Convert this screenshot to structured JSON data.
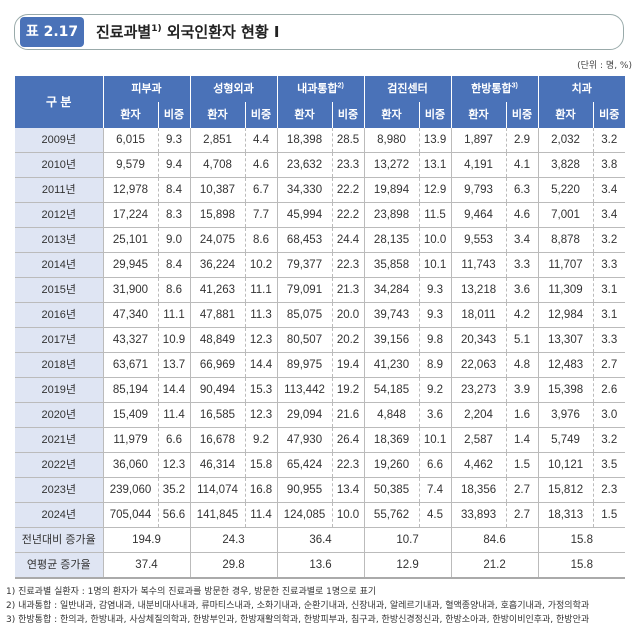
{
  "header": {
    "badge": "표 2.17",
    "title": "진료과별",
    "title_sup": "1)",
    "title_rest": " 외국인환자 현황 Ⅰ",
    "unit": "(단위 : 명, %)"
  },
  "table": {
    "row_header": "구 분",
    "groups": [
      {
        "name": "피부과",
        "sup": ""
      },
      {
        "name": "성형외과",
        "sup": ""
      },
      {
        "name": "내과통합",
        "sup": "2)"
      },
      {
        "name": "검진센터",
        "sup": ""
      },
      {
        "name": "한방통합",
        "sup": "3)"
      },
      {
        "name": "치과",
        "sup": ""
      }
    ],
    "sub_patient": "환자",
    "sub_ratio": "비중",
    "rows": [
      [
        "2009년",
        "6,015",
        "9.3",
        "2,851",
        "4.4",
        "18,398",
        "28.5",
        "8,980",
        "13.9",
        "1,897",
        "2.9",
        "2,032",
        "3.2"
      ],
      [
        "2010년",
        "9,579",
        "9.4",
        "4,708",
        "4.6",
        "23,632",
        "23.3",
        "13,272",
        "13.1",
        "4,191",
        "4.1",
        "3,828",
        "3.8"
      ],
      [
        "2011년",
        "12,978",
        "8.4",
        "10,387",
        "6.7",
        "34,330",
        "22.2",
        "19,894",
        "12.9",
        "9,793",
        "6.3",
        "5,220",
        "3.4"
      ],
      [
        "2012년",
        "17,224",
        "8.3",
        "15,898",
        "7.7",
        "45,994",
        "22.2",
        "23,898",
        "11.5",
        "9,464",
        "4.6",
        "7,001",
        "3.4"
      ],
      [
        "2013년",
        "25,101",
        "9.0",
        "24,075",
        "8.6",
        "68,453",
        "24.4",
        "28,135",
        "10.0",
        "9,553",
        "3.4",
        "8,878",
        "3.2"
      ],
      [
        "2014년",
        "29,945",
        "8.4",
        "36,224",
        "10.2",
        "79,377",
        "22.3",
        "35,858",
        "10.1",
        "11,743",
        "3.3",
        "11,707",
        "3.3"
      ],
      [
        "2015년",
        "31,900",
        "8.6",
        "41,263",
        "11.1",
        "79,091",
        "21.3",
        "34,284",
        "9.3",
        "13,218",
        "3.6",
        "11,309",
        "3.1"
      ],
      [
        "2016년",
        "47,340",
        "11.1",
        "47,881",
        "11.3",
        "85,075",
        "20.0",
        "39,743",
        "9.3",
        "18,011",
        "4.2",
        "12,984",
        "3.1"
      ],
      [
        "2017년",
        "43,327",
        "10.9",
        "48,849",
        "12.3",
        "80,507",
        "20.2",
        "39,156",
        "9.8",
        "20,343",
        "5.1",
        "13,307",
        "3.3"
      ],
      [
        "2018년",
        "63,671",
        "13.7",
        "66,969",
        "14.4",
        "89,975",
        "19.4",
        "41,230",
        "8.9",
        "22,063",
        "4.8",
        "12,483",
        "2.7"
      ],
      [
        "2019년",
        "85,194",
        "14.4",
        "90,494",
        "15.3",
        "113,442",
        "19.2",
        "54,185",
        "9.2",
        "23,273",
        "3.9",
        "15,398",
        "2.6"
      ],
      [
        "2020년",
        "15,409",
        "11.4",
        "16,585",
        "12.3",
        "29,094",
        "21.6",
        "4,848",
        "3.6",
        "2,204",
        "1.6",
        "3,976",
        "3.0"
      ],
      [
        "2021년",
        "11,979",
        "6.6",
        "16,678",
        "9.2",
        "47,930",
        "26.4",
        "18,369",
        "10.1",
        "2,587",
        "1.4",
        "5,749",
        "3.2"
      ],
      [
        "2022년",
        "36,060",
        "12.3",
        "46,314",
        "15.8",
        "65,424",
        "22.3",
        "19,260",
        "6.6",
        "4,462",
        "1.5",
        "10,121",
        "3.5"
      ],
      [
        "2023년",
        "239,060",
        "35.2",
        "114,074",
        "16.8",
        "90,955",
        "13.4",
        "50,385",
        "7.4",
        "18,356",
        "2.7",
        "15,812",
        "2.3"
      ],
      [
        "2024년",
        "705,044",
        "56.6",
        "141,845",
        "11.4",
        "124,085",
        "10.0",
        "55,762",
        "4.5",
        "33,893",
        "2.7",
        "18,313",
        "1.5"
      ]
    ],
    "summary": [
      [
        "전년대비 증가율",
        "194.9",
        "24.3",
        "36.4",
        "10.7",
        "84.6",
        "15.8"
      ],
      [
        "연평균 증가율",
        "37.4",
        "29.8",
        "13.6",
        "12.9",
        "21.2",
        "15.8"
      ]
    ]
  },
  "notes": [
    "1) 진료과별 실환자 : 1명의 환자가 복수의 진료과를 방문한 경우, 방문한 진료과별로 1명으로 표기",
    "2) 내과통합 : 일반내과, 감염내과, 내분비대사내과, 류마티스내과, 소화기내과, 순환기내과, 신장내과, 알레르기내과, 혈액종양내과, 호흡기내과, 가정의학과",
    "3) 한방통합 : 한의과, 한방내과, 사상체질의학과, 한방부인과, 한방재활의학과, 한방피부과, 침구과, 한방신경정신과, 한방소아과, 한방이비인후과, 한방안과"
  ]
}
